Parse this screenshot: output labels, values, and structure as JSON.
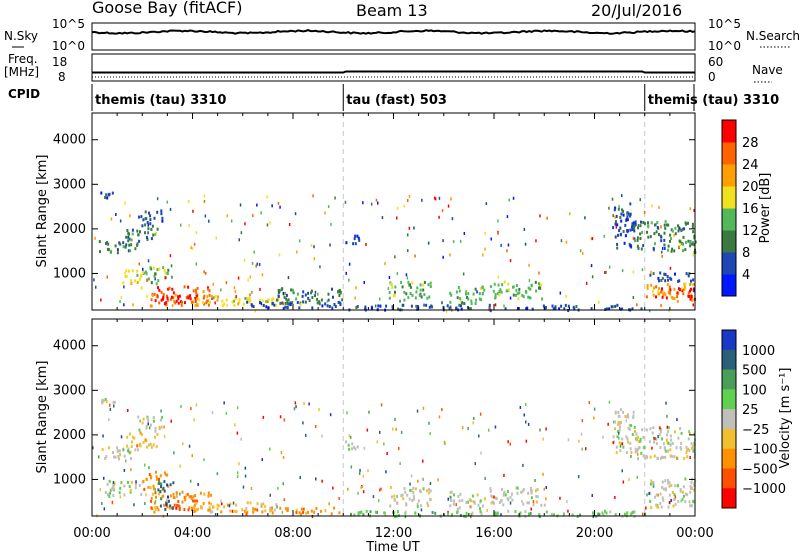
{
  "header": {
    "station": "Goose Bay (fitACF)",
    "beam": "Beam 13",
    "date": "20/Jul/2016"
  },
  "strip1": {
    "left_label": "N.Sky",
    "right_label": "N.Search",
    "left_ticks": [
      "10^5",
      "10^0"
    ],
    "right_ticks": [
      "10^5",
      "10^0"
    ]
  },
  "strip2": {
    "left_label_1": "Freq.",
    "left_label_2": "[MHz]",
    "right_label": "Nave",
    "left_ticks": [
      "18",
      "8"
    ],
    "right_ticks": [
      "60",
      "0"
    ]
  },
  "cpid": {
    "label": "CPID",
    "segments": [
      {
        "name": "themis (tau) 3310",
        "start_h": 0.0,
        "end_h": 10.0
      },
      {
        "name": "tau (fast) 503",
        "start_h": 10.0,
        "end_h": 22.0
      },
      {
        "name": "themis (tau) 3310",
        "start_h": 22.0,
        "end_h": 24.0
      }
    ]
  },
  "colors": {
    "power": [
      "#0018ff",
      "#1e46b4",
      "#3a7a40",
      "#52b85a",
      "#f0e020",
      "#ffa000",
      "#ff6400",
      "#ff0000"
    ],
    "velocity": [
      "#1838c8",
      "#2a6078",
      "#48a058",
      "#60d050",
      "#c0c0b8",
      "#f0c030",
      "#ff9000",
      "#ff5000",
      "#ff0000"
    ],
    "ground_scatter": "#c0c0b8"
  },
  "chart_data": [
    {
      "type": "heatmap",
      "panel": "power",
      "xlabel": "",
      "ylabel": "Slant Range [km]",
      "xlim": [
        0,
        24
      ],
      "ylim": [
        180,
        4600
      ],
      "yticks": [
        "1000",
        "2000",
        "3000",
        "4000"
      ],
      "colorbar_label": "Power [dB]",
      "colorbar_ticks": [
        "4",
        "8",
        "12",
        "16",
        "20",
        "24",
        "28"
      ],
      "scatter_regions": [
        {
          "t0": 0.2,
          "t1": 1.8,
          "r0": 1480,
          "r1": 1750,
          "level": 2
        },
        {
          "t0": 1.3,
          "t1": 2.6,
          "r0": 1750,
          "r1": 2100,
          "level": 2
        },
        {
          "t0": 1.8,
          "t1": 2.8,
          "r0": 2100,
          "r1": 2450,
          "level": 1
        },
        {
          "t0": 0.3,
          "t1": 1.0,
          "r0": 2650,
          "r1": 2850,
          "level": 1
        },
        {
          "t0": 2.0,
          "t1": 3.0,
          "r0": 800,
          "r1": 1200,
          "level": 3
        },
        {
          "t0": 1.2,
          "t1": 2.0,
          "r0": 700,
          "r1": 1100,
          "level": 4
        },
        {
          "t0": 2.3,
          "t1": 4.8,
          "r0": 300,
          "r1": 750,
          "level": 6
        },
        {
          "t0": 2.6,
          "t1": 4.2,
          "r0": 350,
          "r1": 550,
          "level": 7
        },
        {
          "t0": 4.0,
          "t1": 7.5,
          "r0": 300,
          "r1": 520,
          "level": 4
        },
        {
          "t0": 6.0,
          "t1": 10.0,
          "r0": 250,
          "r1": 400,
          "level": 1
        },
        {
          "t0": 7.3,
          "t1": 10.0,
          "r0": 350,
          "r1": 700,
          "level": 2
        },
        {
          "t0": 10.0,
          "t1": 22.0,
          "r0": 200,
          "r1": 320,
          "level": 1
        },
        {
          "t0": 10.0,
          "t1": 10.6,
          "r0": 1700,
          "r1": 1880,
          "level": 1
        },
        {
          "t0": 11.8,
          "t1": 13.5,
          "r0": 420,
          "r1": 850,
          "level": 3
        },
        {
          "t0": 14.2,
          "t1": 15.6,
          "r0": 350,
          "r1": 750,
          "level": 3
        },
        {
          "t0": 15.8,
          "t1": 18.0,
          "r0": 450,
          "r1": 850,
          "level": 3
        },
        {
          "t0": 20.7,
          "t1": 21.6,
          "r0": 1600,
          "r1": 2600,
          "level": 1
        },
        {
          "t0": 21.5,
          "t1": 24.0,
          "r0": 1500,
          "r1": 2200,
          "level": 2
        },
        {
          "t0": 22.0,
          "t1": 24.0,
          "r0": 850,
          "r1": 1050,
          "level": 1
        },
        {
          "t0": 22.0,
          "t1": 24.0,
          "r0": 400,
          "r1": 800,
          "level": 5
        },
        {
          "t0": 22.4,
          "t1": 24.0,
          "r0": 450,
          "r1": 700,
          "level": 7
        }
      ]
    },
    {
      "type": "heatmap",
      "panel": "velocity",
      "xlabel": "Time UT",
      "ylabel": "Slant Range [km]",
      "xlim": [
        0,
        24
      ],
      "ylim": [
        180,
        4600
      ],
      "xticks": [
        "00:00",
        "04:00",
        "08:00",
        "12:00",
        "16:00",
        "20:00",
        "00:00"
      ],
      "yticks": [
        "1000",
        "2000",
        "3000",
        "4000"
      ],
      "colorbar_label": "Velocity [m s⁻¹]",
      "colorbar_ticks": [
        "1000",
        "500",
        "100",
        "25",
        "−25",
        "−100",
        "−500",
        "−1000"
      ],
      "scatter_regions": [
        {
          "t0": 0.2,
          "t1": 1.8,
          "r0": 1480,
          "r1": 1750,
          "level": 4
        },
        {
          "t0": 1.3,
          "t1": 2.6,
          "r0": 1750,
          "r1": 2100,
          "level": 5
        },
        {
          "t0": 1.8,
          "t1": 2.8,
          "r0": 2100,
          "r1": 2450,
          "level": 4
        },
        {
          "t0": 0.3,
          "t1": 1.0,
          "r0": 2650,
          "r1": 2850,
          "level": 4
        },
        {
          "t0": 0.5,
          "t1": 2.0,
          "r0": 650,
          "r1": 1000,
          "level": 4
        },
        {
          "t0": 2.0,
          "t1": 3.0,
          "r0": 800,
          "r1": 1200,
          "level": 6
        },
        {
          "t0": 2.3,
          "t1": 4.8,
          "r0": 300,
          "r1": 750,
          "level": 6
        },
        {
          "t0": 2.6,
          "t1": 3.2,
          "r0": 350,
          "r1": 1000,
          "level": 1
        },
        {
          "t0": 3.0,
          "t1": 4.2,
          "r0": 350,
          "r1": 550,
          "level": 7
        },
        {
          "t0": 4.0,
          "t1": 7.5,
          "r0": 300,
          "r1": 520,
          "level": 5
        },
        {
          "t0": 6.0,
          "t1": 10.0,
          "r0": 250,
          "r1": 400,
          "level": 6
        },
        {
          "t0": 10.0,
          "t1": 22.0,
          "r0": 200,
          "r1": 320,
          "level": 3
        },
        {
          "t0": 10.0,
          "t1": 10.6,
          "r0": 1700,
          "r1": 1880,
          "level": 4
        },
        {
          "t0": 11.8,
          "t1": 13.5,
          "r0": 420,
          "r1": 850,
          "level": 4
        },
        {
          "t0": 14.2,
          "t1": 15.6,
          "r0": 350,
          "r1": 750,
          "level": 4
        },
        {
          "t0": 15.8,
          "t1": 18.0,
          "r0": 450,
          "r1": 850,
          "level": 4
        },
        {
          "t0": 20.7,
          "t1": 21.6,
          "r0": 1600,
          "r1": 2600,
          "level": 4
        },
        {
          "t0": 21.5,
          "t1": 24.0,
          "r0": 1500,
          "r1": 2200,
          "level": 4
        },
        {
          "t0": 22.0,
          "t1": 24.0,
          "r0": 400,
          "r1": 1050,
          "level": 4
        }
      ]
    }
  ]
}
